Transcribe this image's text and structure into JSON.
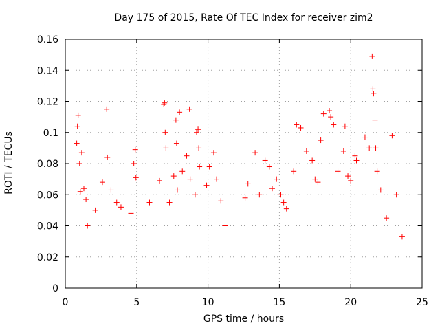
{
  "chart_data": {
    "type": "scatter",
    "title": "Day 175 of 2015, Rate Of TEC Index for receiver zim2",
    "xlabel": "GPS time / hours",
    "ylabel": "ROTI / TECUs",
    "xlim": [
      0,
      25
    ],
    "ylim": [
      0,
      0.16
    ],
    "xticks": [
      0,
      5,
      10,
      15,
      20,
      25
    ],
    "xtick_labels": [
      "0",
      "5",
      "10",
      "15",
      "20",
      "25"
    ],
    "yticks": [
      0,
      0.02,
      0.04,
      0.06,
      0.08,
      0.1,
      0.12,
      0.14,
      0.16
    ],
    "ytick_labels": [
      "0",
      "0.02",
      "0.04",
      "0.06",
      "0.08",
      "0.1",
      "0.12",
      "0.14",
      "0.16"
    ],
    "grid": true,
    "marker": "+",
    "color": "#ff0000",
    "series": [
      {
        "name": "ROTI",
        "x": [
          0.8,
          0.85,
          0.9,
          1.0,
          1.05,
          1.15,
          1.3,
          1.45,
          1.55,
          2.1,
          2.6,
          2.9,
          2.95,
          3.2,
          3.6,
          3.9,
          4.6,
          4.8,
          4.9,
          4.95,
          5.9,
          6.6,
          6.9,
          6.95,
          7.0,
          7.05,
          7.3,
          7.6,
          7.75,
          7.8,
          7.85,
          8.0,
          8.2,
          8.5,
          8.7,
          8.75,
          9.1,
          9.2,
          9.3,
          9.35,
          9.4,
          9.9,
          10.1,
          10.4,
          10.6,
          10.9,
          11.2,
          12.6,
          12.8,
          13.3,
          13.6,
          14.0,
          14.3,
          14.5,
          14.8,
          15.1,
          15.3,
          15.5,
          16.0,
          16.2,
          16.5,
          16.9,
          17.3,
          17.5,
          17.7,
          17.9,
          18.1,
          18.5,
          18.6,
          18.8,
          19.1,
          19.5,
          19.6,
          19.8,
          20.0,
          20.3,
          20.4,
          21.0,
          21.3,
          21.5,
          21.55,
          21.6,
          21.7,
          21.75,
          21.85,
          22.1,
          22.5,
          22.9,
          23.2,
          23.6
        ],
        "y": [
          0.093,
          0.104,
          0.111,
          0.08,
          0.062,
          0.087,
          0.064,
          0.057,
          0.04,
          0.05,
          0.068,
          0.115,
          0.084,
          0.063,
          0.055,
          0.052,
          0.048,
          0.08,
          0.089,
          0.071,
          0.055,
          0.069,
          0.118,
          0.119,
          0.1,
          0.09,
          0.055,
          0.072,
          0.108,
          0.093,
          0.063,
          0.113,
          0.075,
          0.085,
          0.115,
          0.07,
          0.06,
          0.1,
          0.102,
          0.09,
          0.078,
          0.066,
          0.078,
          0.087,
          0.07,
          0.056,
          0.04,
          0.058,
          0.067,
          0.087,
          0.06,
          0.082,
          0.078,
          0.064,
          0.07,
          0.06,
          0.055,
          0.051,
          0.075,
          0.105,
          0.103,
          0.088,
          0.082,
          0.07,
          0.068,
          0.095,
          0.112,
          0.114,
          0.11,
          0.105,
          0.075,
          0.088,
          0.104,
          0.072,
          0.069,
          0.085,
          0.082,
          0.097,
          0.09,
          0.149,
          0.128,
          0.125,
          0.108,
          0.09,
          0.075,
          0.063,
          0.045,
          0.098,
          0.06,
          0.033
        ]
      }
    ]
  }
}
